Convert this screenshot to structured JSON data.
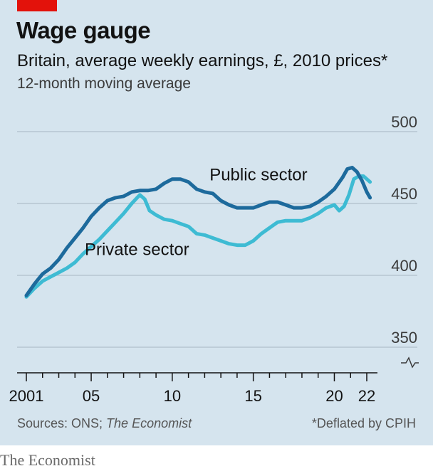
{
  "header": {
    "title": "Wage gauge",
    "subtitle": "Britain, average weekly earnings, £, 2010 prices*",
    "note": "12-month moving average"
  },
  "footer": {
    "source_prefix": "Sources: ONS; ",
    "source_em": "The Economist",
    "deflator": "*Deflated by CPIH",
    "brand": "The Economist"
  },
  "colors": {
    "background": "#d5e4ee",
    "public": "#1d6a9c",
    "private": "#3ebbd3",
    "grid": "#b6c5d0",
    "accent": "#e3120b"
  },
  "chart_data": {
    "type": "line",
    "ylim": [
      350,
      500
    ],
    "y_ticks": [
      350,
      400,
      450,
      500
    ],
    "y_axis_broken": true,
    "xlim": [
      2000.6,
      2022.7
    ],
    "x_tick_labels": [
      {
        "x": 2001,
        "label": "2001"
      },
      {
        "x": 2005,
        "label": "05"
      },
      {
        "x": 2010,
        "label": "10"
      },
      {
        "x": 2015,
        "label": "15"
      },
      {
        "x": 2020,
        "label": "20"
      },
      {
        "x": 2022,
        "label": "22"
      }
    ],
    "series": [
      {
        "name": "Public sector",
        "color": "#1d6a9c",
        "points": [
          [
            2001.0,
            386
          ],
          [
            2001.5,
            394
          ],
          [
            2002.0,
            401
          ],
          [
            2002.5,
            405
          ],
          [
            2003.0,
            411
          ],
          [
            2003.5,
            419
          ],
          [
            2004.0,
            426
          ],
          [
            2004.5,
            433
          ],
          [
            2005.0,
            441
          ],
          [
            2005.5,
            447
          ],
          [
            2006.0,
            452
          ],
          [
            2006.5,
            454
          ],
          [
            2007.0,
            455
          ],
          [
            2007.5,
            458
          ],
          [
            2008.0,
            459
          ],
          [
            2008.5,
            459
          ],
          [
            2009.0,
            460
          ],
          [
            2009.5,
            464
          ],
          [
            2010.0,
            467
          ],
          [
            2010.5,
            467
          ],
          [
            2011.0,
            465
          ],
          [
            2011.5,
            460
          ],
          [
            2012.0,
            458
          ],
          [
            2012.5,
            457
          ],
          [
            2013.0,
            452
          ],
          [
            2013.5,
            449
          ],
          [
            2014.0,
            447
          ],
          [
            2014.5,
            447
          ],
          [
            2015.0,
            447
          ],
          [
            2015.5,
            449
          ],
          [
            2016.0,
            451
          ],
          [
            2016.5,
            451
          ],
          [
            2017.0,
            449
          ],
          [
            2017.5,
            447
          ],
          [
            2018.0,
            447
          ],
          [
            2018.5,
            448
          ],
          [
            2019.0,
            451
          ],
          [
            2019.5,
            455
          ],
          [
            2020.0,
            460
          ],
          [
            2020.5,
            468
          ],
          [
            2020.8,
            474
          ],
          [
            2021.1,
            475
          ],
          [
            2021.4,
            472
          ],
          [
            2021.7,
            466
          ],
          [
            2022.0,
            458
          ],
          [
            2022.2,
            454
          ]
        ]
      },
      {
        "name": "Private sector",
        "color": "#3ebbd3",
        "points": [
          [
            2001.0,
            385
          ],
          [
            2001.5,
            391
          ],
          [
            2002.0,
            396
          ],
          [
            2002.5,
            399
          ],
          [
            2003.0,
            402
          ],
          [
            2003.5,
            405
          ],
          [
            2004.0,
            409
          ],
          [
            2004.5,
            415
          ],
          [
            2005.0,
            420
          ],
          [
            2005.5,
            425
          ],
          [
            2006.0,
            431
          ],
          [
            2006.5,
            437
          ],
          [
            2007.0,
            443
          ],
          [
            2007.5,
            450
          ],
          [
            2008.0,
            456
          ],
          [
            2008.3,
            453
          ],
          [
            2008.6,
            445
          ],
          [
            2009.0,
            442
          ],
          [
            2009.5,
            439
          ],
          [
            2010.0,
            438
          ],
          [
            2010.5,
            436
          ],
          [
            2011.0,
            434
          ],
          [
            2011.5,
            429
          ],
          [
            2012.0,
            428
          ],
          [
            2012.5,
            426
          ],
          [
            2013.0,
            424
          ],
          [
            2013.5,
            422
          ],
          [
            2014.0,
            421
          ],
          [
            2014.5,
            421
          ],
          [
            2015.0,
            424
          ],
          [
            2015.5,
            429
          ],
          [
            2016.0,
            433
          ],
          [
            2016.5,
            437
          ],
          [
            2017.0,
            438
          ],
          [
            2017.5,
            438
          ],
          [
            2018.0,
            438
          ],
          [
            2018.5,
            440
          ],
          [
            2019.0,
            443
          ],
          [
            2019.5,
            447
          ],
          [
            2020.0,
            449
          ],
          [
            2020.3,
            445
          ],
          [
            2020.6,
            448
          ],
          [
            2020.9,
            456
          ],
          [
            2021.2,
            467
          ],
          [
            2021.5,
            469
          ],
          [
            2021.8,
            469
          ],
          [
            2022.2,
            465
          ]
        ]
      }
    ],
    "annotations": [
      {
        "text": "Public sector",
        "x": 2012.3,
        "y": 466
      },
      {
        "text": "Private sector",
        "x": 2004.6,
        "y": 414
      }
    ]
  }
}
